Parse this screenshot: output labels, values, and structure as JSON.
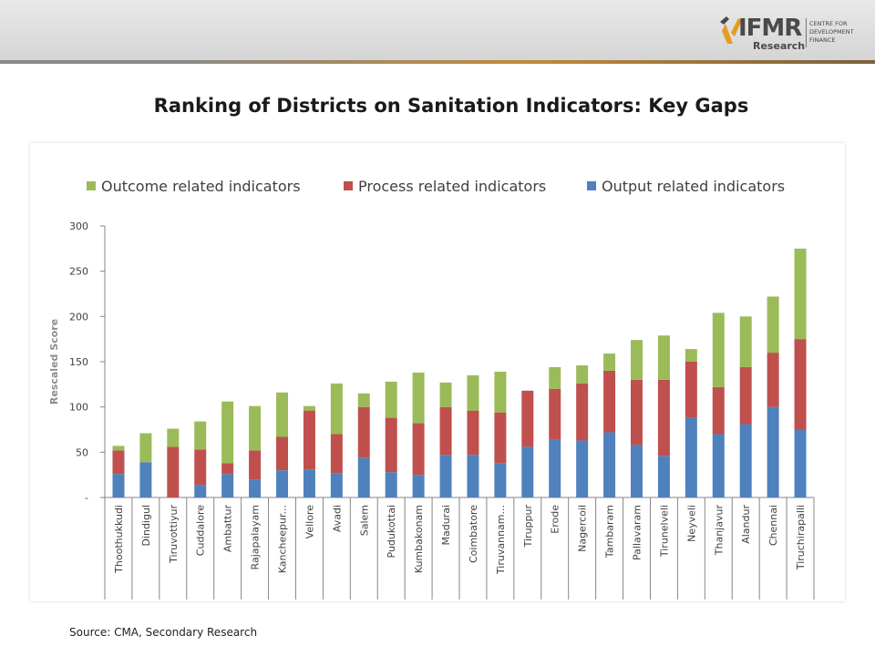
{
  "header": {
    "logo_text": "IFMR",
    "logo_subtext": "Research",
    "logo_tagline": "CENTRE FOR\nDEVELOPMENT\nFINANCE"
  },
  "title": "Ranking of Districts on Sanitation Indicators: Key Gaps",
  "source": "Source: CMA, Secondary Research",
  "chart_data": {
    "type": "bar",
    "stacked": true,
    "ylabel": "Rescaled Score",
    "ylim": [
      0,
      300
    ],
    "yticks": [
      0,
      50,
      100,
      150,
      200,
      250,
      300
    ],
    "ytick_labels": [
      "-",
      "50",
      "100",
      "150",
      "200",
      "250",
      "300"
    ],
    "grid": false,
    "legend_position": "top",
    "categories": [
      "Thoothukkudi",
      "Dindigul",
      "Tiruvottiyur",
      "Cuddalore",
      "Ambattur",
      "Rajapalayam",
      "Kancheepur...",
      "Vellore",
      "Avadi",
      "Salem",
      "Pudukottai",
      "Kumbakonam",
      "Madurai",
      "Coimbatore",
      "Tiruvannam...",
      "Tiruppur",
      "Erode",
      "Nagercoil",
      "Tambaram",
      "Pallavaram",
      "Tirunelveli",
      "Neyveli",
      "Thanjavur",
      "Alandur",
      "Chennai",
      "Tiruchirapalli"
    ],
    "series": [
      {
        "name": "Output related indicators",
        "color": "#4f81bd",
        "values": [
          26,
          39,
          0,
          14,
          26,
          20,
          30,
          31,
          27,
          44,
          28,
          25,
          47,
          47,
          38,
          56,
          64,
          63,
          72,
          58,
          46,
          88,
          70,
          81,
          100,
          75
        ]
      },
      {
        "name": "Process related indicators",
        "color": "#c0504d",
        "values": [
          26,
          0,
          56,
          39,
          12,
          32,
          37,
          65,
          43,
          56,
          60,
          57,
          53,
          49,
          56,
          62,
          56,
          63,
          68,
          72,
          84,
          62,
          52,
          63,
          60,
          100
        ]
      },
      {
        "name": "Outcome related indicators",
        "color": "#9bbb59",
        "values": [
          5,
          32,
          20,
          31,
          68,
          49,
          49,
          5,
          56,
          15,
          40,
          56,
          27,
          39,
          45,
          0,
          24,
          20,
          19,
          44,
          49,
          14,
          82,
          56,
          62,
          100
        ]
      }
    ],
    "legend_order": [
      "Outcome related indicators",
      "Process related indicators",
      "Output related indicators"
    ]
  }
}
